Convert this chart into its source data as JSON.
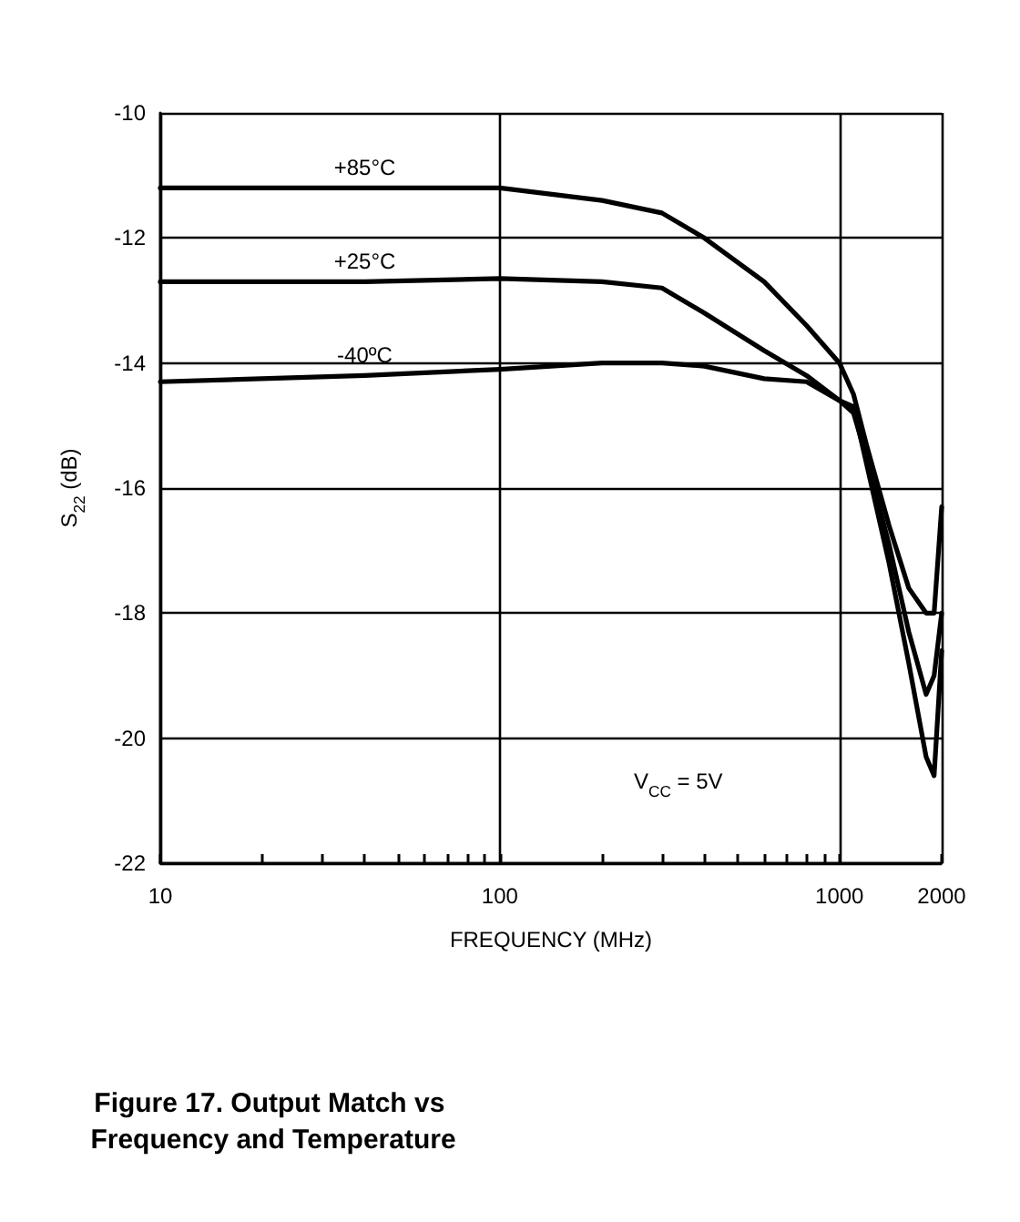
{
  "chart_data": {
    "type": "line",
    "title": "Figure 17. Output Match vs Frequency and Temperature",
    "xlabel": "FREQUENCY (MHz)",
    "ylabel": "S$_{22}$ (dB)",
    "log": "x",
    "xlim": [
      10,
      2000
    ],
    "ylim": [
      -22,
      -10
    ],
    "xticks": [
      10,
      {
        "value": 20,
        "label": null
      },
      {
        "value": 30,
        "label": null
      },
      {
        "value": 40,
        "label": null
      },
      {
        "value": 50,
        "label": null
      },
      {
        "value": 60,
        "label": null
      },
      {
        "value": 70,
        "label": null
      },
      {
        "value": 80,
        "label": null
      },
      {
        "value": 90,
        "label": null
      },
      100,
      {
        "value": 200,
        "label": null
      },
      {
        "value": 300,
        "label": null
      },
      {
        "value": 400,
        "label": null
      },
      {
        "value": 500,
        "label": null
      },
      {
        "value": 600,
        "label": null
      },
      {
        "value": 700,
        "label": null
      },
      {
        "value": 800,
        "label": null
      },
      {
        "value": 900,
        "label": null
      },
      1000,
      2000
    ],
    "yticks": [
      -22,
      -20,
      -18,
      -16,
      -14,
      -12,
      -10
    ],
    "grid": true,
    "legend": false,
    "marker": "none",
    "line_style": "solid",
    "annotations": [
      "V$_{CC}$ = 5V"
    ],
    "series": [
      {
        "name": "+85°C",
        "color": "#000000",
        "x": [
          10,
          40,
          100,
          200,
          300,
          400,
          600,
          800,
          1000,
          1100,
          1200,
          1400,
          1600,
          1800,
          1900,
          2000
        ],
        "values": [
          -11.2,
          -11.2,
          -11.2,
          -11.4,
          -11.6,
          -12.0,
          -12.7,
          -13.4,
          -14.0,
          -14.5,
          -15.3,
          -16.6,
          -17.6,
          -18.0,
          -18.0,
          -16.3
        ]
      },
      {
        "name": "+25°C",
        "color": "#000000",
        "x": [
          10,
          40,
          100,
          200,
          300,
          400,
          600,
          800,
          1000,
          1100,
          1200,
          1400,
          1600,
          1800,
          1900,
          2000
        ],
        "values": [
          -12.7,
          -12.7,
          -12.65,
          -12.7,
          -12.8,
          -13.2,
          -13.8,
          -14.2,
          -14.6,
          -14.8,
          -15.5,
          -16.9,
          -18.3,
          -19.3,
          -19.0,
          -18.0
        ]
      },
      {
        "name": "-40ºC",
        "color": "#000000",
        "x": [
          10,
          40,
          100,
          200,
          300,
          400,
          600,
          800,
          1000,
          1100,
          1200,
          1400,
          1600,
          1800,
          1900,
          2000
        ],
        "values": [
          -14.3,
          -14.2,
          -14.1,
          -14.0,
          -14.0,
          -14.05,
          -14.25,
          -14.3,
          -14.6,
          -14.7,
          -15.6,
          -17.2,
          -18.8,
          -20.3,
          -20.6,
          -18.6
        ]
      }
    ]
  }
}
